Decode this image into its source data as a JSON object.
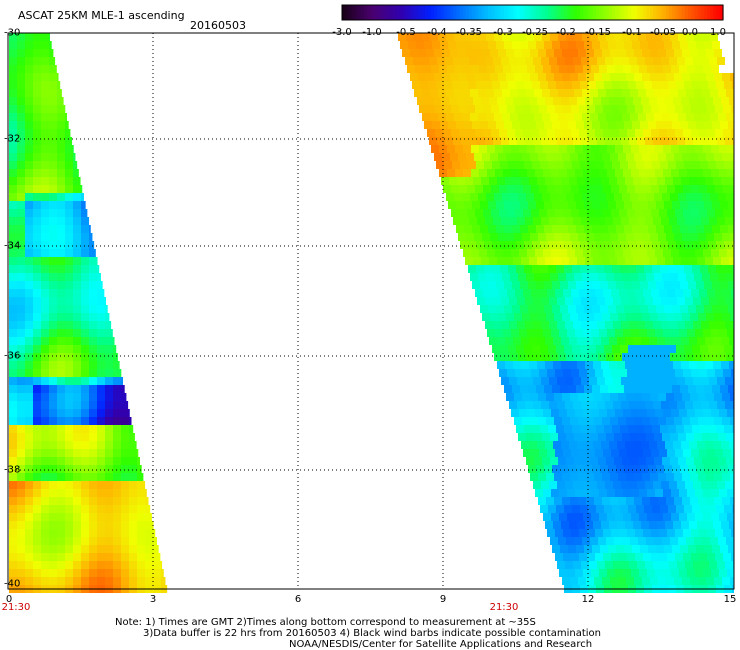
{
  "header": {
    "title": "ASCAT 25KM MLE-1 ascending",
    "date": "20160503"
  },
  "colorbar": {
    "ticks": [
      "-3.0",
      "-1.0",
      "-0.5",
      "-0.4",
      "-0.35",
      "-0.3",
      "-0.25",
      "-0.2",
      "-0.15",
      "-0.1",
      "-0.05",
      "0.0",
      "1.0"
    ],
    "colors": [
      "#1a001a",
      "#4a0070",
      "#3000c0",
      "#0030ff",
      "#0080ff",
      "#00c8ff",
      "#00ffff",
      "#00ff80",
      "#40ff00",
      "#a0ff00",
      "#ffff00",
      "#ffa000",
      "#ff3000"
    ]
  },
  "axes": {
    "lat_labels": [
      "-30",
      "-32",
      "-34",
      "-36",
      "-38",
      "-40"
    ],
    "lon_labels": [
      "0",
      "3",
      "6",
      "9",
      "12",
      "15"
    ],
    "time_labels": [
      "21:30",
      "21:30"
    ]
  },
  "notes": {
    "line1": "Note: 1) Times are GMT 2)Times along bottom correspond to measurement at ~35S",
    "line2": "3)Data buffer is 22 hrs from 20160503 4) Black wind barbs indicate possible contamination",
    "line3": "NOAA/NESDIS/Center for Satellite Applications and Research"
  },
  "swaths": [
    {
      "name": "west-swath",
      "dominant": "green-yellow-orange"
    },
    {
      "name": "east-swath",
      "dominant": "yellow-green-blue"
    }
  ]
}
